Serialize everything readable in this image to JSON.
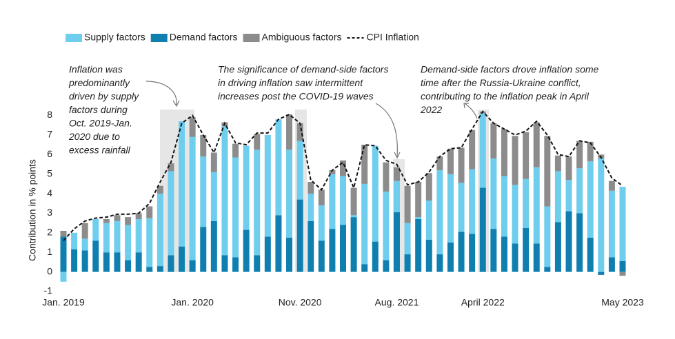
{
  "chart_data": {
    "type": "bar",
    "stacked": true,
    "y_label": "Contribution in  % points",
    "categories": [
      "Jan. 2019",
      null,
      null,
      null,
      null,
      null,
      null,
      null,
      null,
      null,
      null,
      null,
      "Jan. 2020",
      null,
      null,
      null,
      null,
      null,
      null,
      null,
      null,
      null,
      "Nov. 2020",
      null,
      null,
      null,
      null,
      null,
      null,
      null,
      null,
      "Aug. 2021",
      null,
      null,
      null,
      null,
      null,
      null,
      null,
      "April 2022",
      null,
      null,
      null,
      null,
      null,
      null,
      null,
      null,
      null,
      null,
      null,
      null,
      "May 2023"
    ],
    "series": [
      {
        "name": "Supply factors",
        "color": "#6fcdee",
        "values": [
          -0.5,
          0.85,
          0.6,
          1.1,
          1.5,
          1.6,
          1.8,
          1.7,
          2.5,
          3.7,
          4.3,
          6.4,
          6.3,
          3.6,
          2.5,
          6.6,
          5.1,
          4.3,
          5.4,
          5.2,
          4.9,
          4.5,
          3.0,
          1.4,
          1.8,
          2.8,
          2.5,
          0.1,
          4.1,
          4.9,
          3.5,
          1.6,
          1.6,
          0.1,
          2.0,
          4.3,
          3.5,
          2.5,
          3.3,
          3.8,
          3.6,
          3.1,
          3.0,
          2.5,
          3.9,
          3.1,
          2.6,
          1.6,
          2.3,
          3.9,
          5.8,
          3.4,
          3.8
        ]
      },
      {
        "name": "Demand factors",
        "color": "#0f7fb0",
        "values": [
          1.8,
          1.15,
          1.1,
          1.6,
          1.0,
          1.0,
          0.6,
          1.0,
          0.25,
          0.3,
          0.85,
          1.3,
          0.6,
          2.3,
          2.6,
          0.85,
          0.75,
          2.15,
          0.85,
          1.8,
          2.9,
          1.75,
          3.7,
          2.6,
          1.6,
          2.2,
          2.4,
          2.8,
          0.4,
          1.55,
          0.6,
          3.05,
          0.9,
          2.7,
          1.65,
          0.9,
          1.5,
          2.05,
          1.95,
          4.3,
          2.2,
          1.8,
          1.45,
          2.25,
          1.45,
          0.25,
          2.55,
          3.1,
          3.0,
          1.75,
          -0.15,
          0.75,
          0.55
        ]
      },
      {
        "name": "Ambiguous factors",
        "color": "#8c8c8c",
        "values": [
          0.3,
          0.0,
          0.8,
          0.0,
          0.2,
          0.3,
          0.4,
          0.3,
          0.6,
          0.4,
          0.4,
          0.0,
          1.0,
          1.1,
          1.0,
          0.2,
          0.7,
          0.0,
          0.8,
          0.0,
          0.0,
          1.8,
          0.9,
          0.6,
          0.8,
          0.2,
          0.8,
          1.4,
          2.0,
          0.0,
          1.5,
          0.7,
          1.9,
          1.8,
          1.4,
          0.7,
          1.3,
          1.8,
          2.0,
          0.1,
          1.8,
          2.4,
          2.5,
          2.4,
          2.3,
          3.6,
          0.8,
          1.2,
          1.4,
          1.0,
          0.2,
          0.5,
          -0.2
        ]
      },
      {
        "name": "CPI Inflation",
        "type": "line",
        "color": "#111111",
        "values": [
          1.6,
          2.2,
          2.6,
          2.75,
          2.8,
          2.95,
          2.95,
          3.0,
          3.5,
          4.6,
          5.6,
          7.6,
          8.0,
          7.0,
          6.1,
          7.6,
          6.6,
          6.5,
          7.1,
          7.1,
          7.8,
          8.05,
          7.6,
          4.7,
          4.2,
          5.2,
          5.6,
          4.3,
          6.5,
          6.45,
          5.7,
          5.5,
          4.45,
          4.6,
          5.1,
          5.9,
          6.3,
          6.35,
          7.3,
          8.2,
          7.6,
          7.3,
          7.0,
          7.2,
          7.7,
          7.0,
          6.0,
          5.9,
          6.7,
          6.6,
          5.85,
          4.8,
          4.4
        ]
      }
    ],
    "ylim": [
      -1,
      8.3
    ],
    "yticks": [
      -1,
      0,
      1,
      2,
      3,
      4,
      5,
      6,
      7,
      8
    ],
    "annotations": [
      {
        "text": [
          "Inflation was",
          "predominantly",
          "driven by supply",
          "factors during",
          "Oct. 2019-Jan.",
          "2020 due to",
          "excess rainfall"
        ]
      },
      {
        "text": [
          "The significance of demand-side factors",
          "in driving inflation saw intermittent",
          "increases post the COVID-19 waves"
        ]
      },
      {
        "text": [
          "Demand-side factors drove inflation some",
          "time after the Russia-Ukraine conflict,",
          "contributing to the inflation peak in April",
          "2022"
        ]
      }
    ]
  }
}
